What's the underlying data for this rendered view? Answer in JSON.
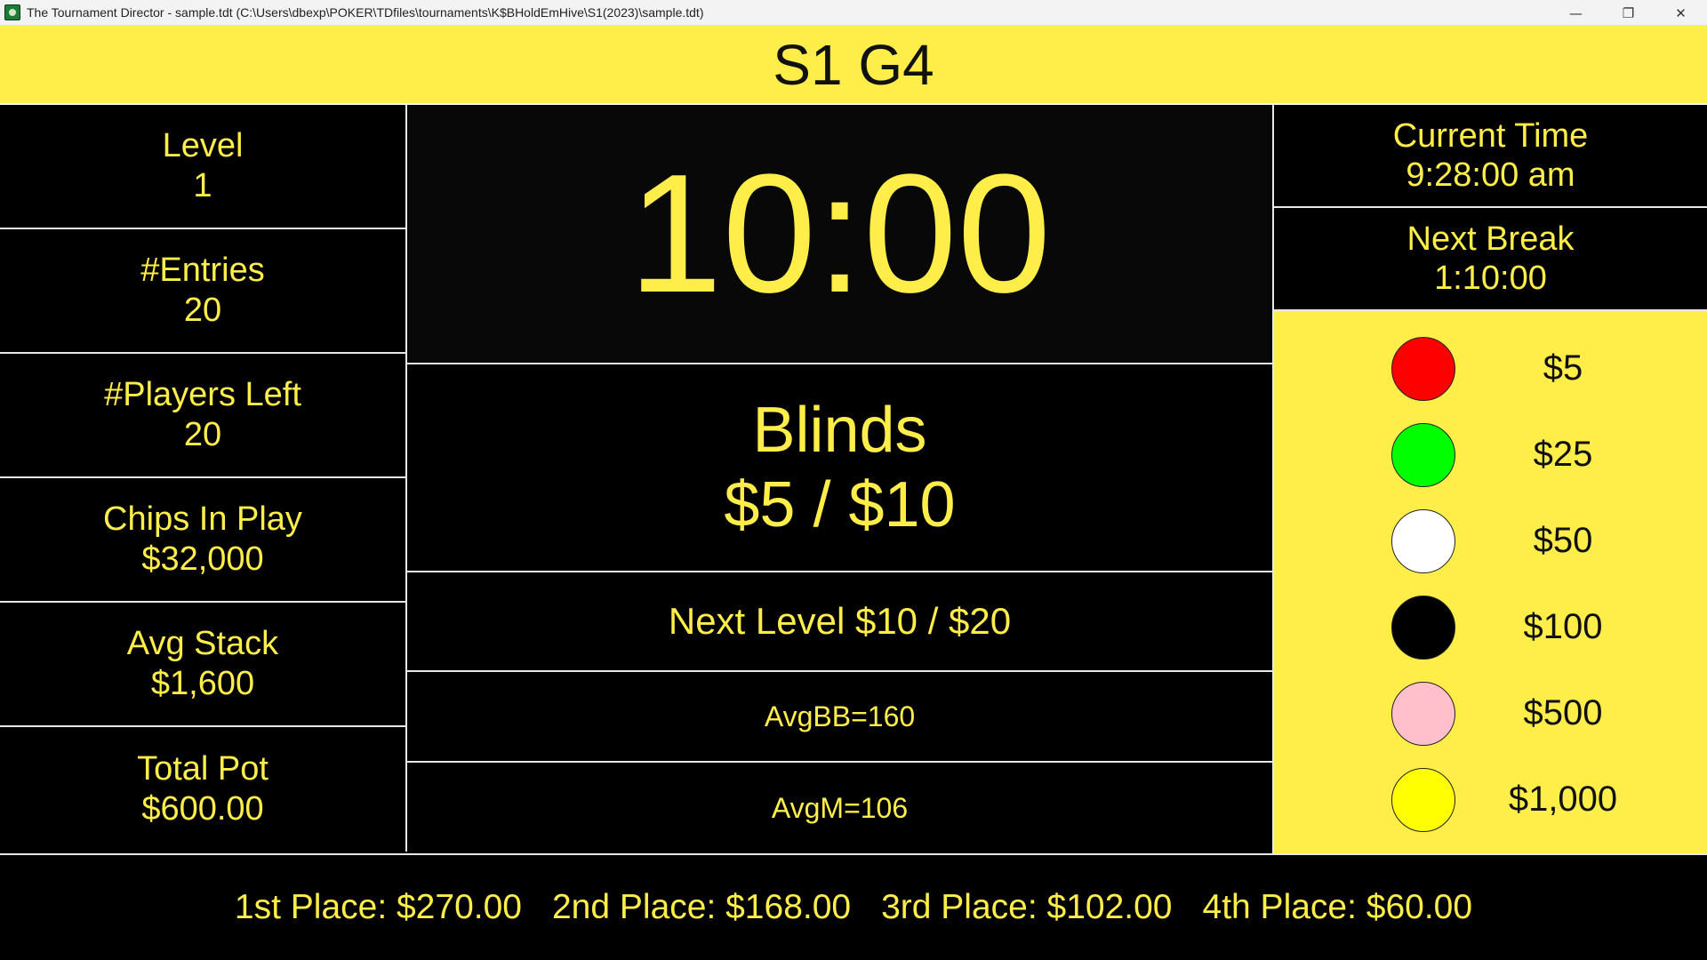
{
  "window": {
    "title": "The Tournament Director - sample.tdt (C:\\Users\\dbexp\\POKER\\TDfiles\\tournaments\\K$BHoldEmHive\\S1(2023)\\sample.tdt)",
    "minimize_glyph": "—",
    "restore_glyph": "❐",
    "close_glyph": "✕"
  },
  "header": {
    "title": "S1 G4"
  },
  "left": {
    "stats": [
      {
        "label": "Level",
        "value": "1"
      },
      {
        "label": "#Entries",
        "value": "20"
      },
      {
        "label": "#Players Left",
        "value": "20"
      },
      {
        "label": "Chips In Play",
        "value": "$32,000"
      },
      {
        "label": "Avg Stack",
        "value": "$1,600"
      },
      {
        "label": "Total Pot",
        "value": "$600.00"
      }
    ]
  },
  "center": {
    "timer": "10:00",
    "blinds_label": "Blinds",
    "blinds_value": "$5 / $10",
    "next_level": "Next Level $10 / $20",
    "avg_bb": "AvgBB=160",
    "avg_m": "AvgM=106"
  },
  "right": {
    "current_time_label": "Current Time",
    "current_time_value": "9:28:00 am",
    "next_break_label": "Next Break",
    "next_break_value": "1:10:00",
    "chips": [
      {
        "color": "#ff0000",
        "value": "$5"
      },
      {
        "color": "#00ff00",
        "value": "$25"
      },
      {
        "color": "#ffffff",
        "value": "$50"
      },
      {
        "color": "#000000",
        "value": "$100"
      },
      {
        "color": "#ffc0cb",
        "value": "$500"
      },
      {
        "color": "#ffff00",
        "value": "$1,000"
      }
    ]
  },
  "footer": {
    "payouts": [
      "1st Place: $270.00",
      "2nd Place: $168.00",
      "3rd Place: $102.00",
      "4th Place: $60.00"
    ]
  },
  "colors": {
    "accent_yellow": "#ffee4a",
    "background": "#000000",
    "divider": "#e8e8e8"
  }
}
